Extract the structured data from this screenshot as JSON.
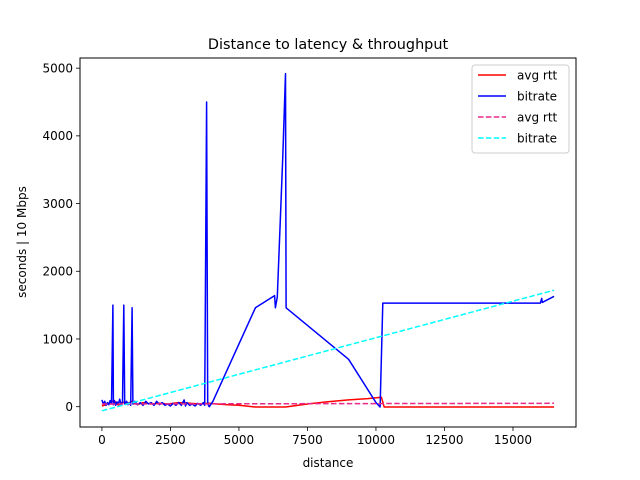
{
  "chart_data": {
    "type": "line",
    "title": "Distance to latency & throughput",
    "xlabel": "distance",
    "ylabel": "seconds    |    10 Mbps",
    "xlim": [
      -800,
      17300
    ],
    "ylim": [
      -300,
      5150
    ],
    "xticks": [
      0,
      2500,
      5000,
      7500,
      10000,
      12500,
      15000
    ],
    "yticks": [
      0,
      1000,
      2000,
      3000,
      4000,
      5000
    ],
    "grid": false,
    "legend_position": "top-right",
    "series": [
      {
        "name": "avg rtt",
        "color": "#ff0000",
        "style": "solid",
        "points": [
          [
            0,
            10
          ],
          [
            150,
            30
          ],
          [
            300,
            60
          ],
          [
            450,
            90
          ],
          [
            600,
            20
          ],
          [
            750,
            70
          ],
          [
            900,
            40
          ],
          [
            1100,
            80
          ],
          [
            1300,
            30
          ],
          [
            1500,
            60
          ],
          [
            1800,
            40
          ],
          [
            2100,
            50
          ],
          [
            2400,
            40
          ],
          [
            2800,
            60
          ],
          [
            3200,
            50
          ],
          [
            3600,
            40
          ],
          [
            3900,
            50
          ],
          [
            4200,
            40
          ],
          [
            4600,
            30
          ],
          [
            5000,
            20
          ],
          [
            5600,
            -5
          ],
          [
            6200,
            -5
          ],
          [
            6700,
            -5
          ],
          [
            7500,
            40
          ],
          [
            8200,
            70
          ],
          [
            9000,
            100
          ],
          [
            9700,
            120
          ],
          [
            10200,
            140
          ],
          [
            10300,
            -5
          ],
          [
            12000,
            -5
          ],
          [
            14000,
            -5
          ],
          [
            16500,
            -5
          ]
        ]
      },
      {
        "name": "bitrate",
        "color": "#0000ff",
        "style": "solid",
        "points": [
          [
            0,
            100
          ],
          [
            50,
            40
          ],
          [
            100,
            80
          ],
          [
            150,
            20
          ],
          [
            200,
            60
          ],
          [
            250,
            30
          ],
          [
            300,
            90
          ],
          [
            350,
            40
          ],
          [
            400,
            1500
          ],
          [
            420,
            30
          ],
          [
            450,
            90
          ],
          [
            500,
            20
          ],
          [
            550,
            70
          ],
          [
            600,
            40
          ],
          [
            650,
            110
          ],
          [
            700,
            30
          ],
          [
            750,
            60
          ],
          [
            800,
            1500
          ],
          [
            830,
            40
          ],
          [
            900,
            80
          ],
          [
            950,
            30
          ],
          [
            1000,
            60
          ],
          [
            1050,
            20
          ],
          [
            1100,
            1460
          ],
          [
            1130,
            40
          ],
          [
            1200,
            80
          ],
          [
            1300,
            30
          ],
          [
            1400,
            60
          ],
          [
            1500,
            20
          ],
          [
            1600,
            80
          ],
          [
            1700,
            40
          ],
          [
            1800,
            60
          ],
          [
            1900,
            20
          ],
          [
            2000,
            80
          ],
          [
            2100,
            30
          ],
          [
            2200,
            60
          ],
          [
            2300,
            20
          ],
          [
            2400,
            40
          ],
          [
            2500,
            10
          ],
          [
            2600,
            50
          ],
          [
            2700,
            20
          ],
          [
            2800,
            60
          ],
          [
            2900,
            20
          ],
          [
            3000,
            100
          ],
          [
            3050,
            10
          ],
          [
            3100,
            60
          ],
          [
            3200,
            20
          ],
          [
            3300,
            40
          ],
          [
            3400,
            10
          ],
          [
            3500,
            50
          ],
          [
            3600,
            20
          ],
          [
            3700,
            60
          ],
          [
            3750,
            20
          ],
          [
            3820,
            4500
          ],
          [
            3860,
            40
          ],
          [
            3920,
            0
          ],
          [
            4050,
            80
          ],
          [
            5600,
            1460
          ],
          [
            6300,
            1640
          ],
          [
            6330,
            1460
          ],
          [
            6400,
            1620
          ],
          [
            6600,
            3700
          ],
          [
            6700,
            4920
          ],
          [
            6720,
            1460
          ],
          [
            9000,
            700
          ],
          [
            10000,
            60
          ],
          [
            10150,
            -5
          ],
          [
            10250,
            1530
          ],
          [
            13000,
            1530
          ],
          [
            16000,
            1530
          ],
          [
            16050,
            1600
          ],
          [
            16070,
            1540
          ],
          [
            16500,
            1630
          ]
        ]
      },
      {
        "name": "avg rtt",
        "color": "#e7298a",
        "style": "dashed",
        "points": [
          [
            0,
            40
          ],
          [
            16500,
            50
          ]
        ]
      },
      {
        "name": "bitrate",
        "color": "#00ffff",
        "style": "dashed",
        "points": [
          [
            0,
            -60
          ],
          [
            16500,
            1720
          ]
        ]
      }
    ]
  }
}
